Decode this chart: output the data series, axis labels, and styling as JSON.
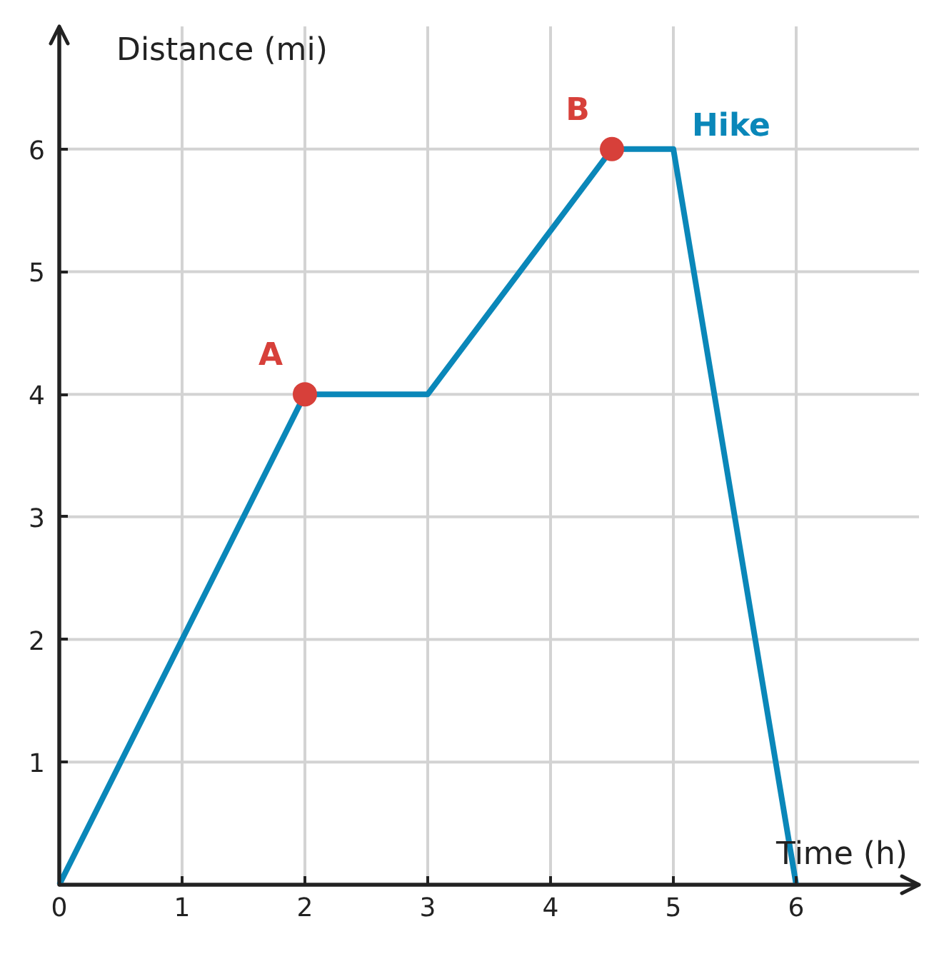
{
  "chart_data": {
    "type": "line",
    "xlabel": "Time (h)",
    "ylabel": "Distance (mi)",
    "xlim": [
      0,
      7
    ],
    "ylim": [
      0,
      7
    ],
    "xticks": [
      0,
      1,
      2,
      3,
      4,
      5,
      6
    ],
    "yticks": [
      1,
      2,
      3,
      4,
      5,
      6
    ],
    "grid": true,
    "series": [
      {
        "name": "Hike",
        "color": "#0a87b9",
        "x": [
          0,
          2,
          3,
          4.5,
          5,
          6
        ],
        "values": [
          0,
          4,
          4,
          6,
          6,
          0
        ]
      },
      {
        "name": "A",
        "type": "scatter",
        "marker": "circle",
        "color": "#d7403a",
        "x": [
          2
        ],
        "values": [
          4
        ]
      },
      {
        "name": "B",
        "type": "scatter",
        "marker": "circle",
        "color": "#d7403a",
        "x": [
          4.5
        ],
        "values": [
          6
        ]
      }
    ]
  }
}
